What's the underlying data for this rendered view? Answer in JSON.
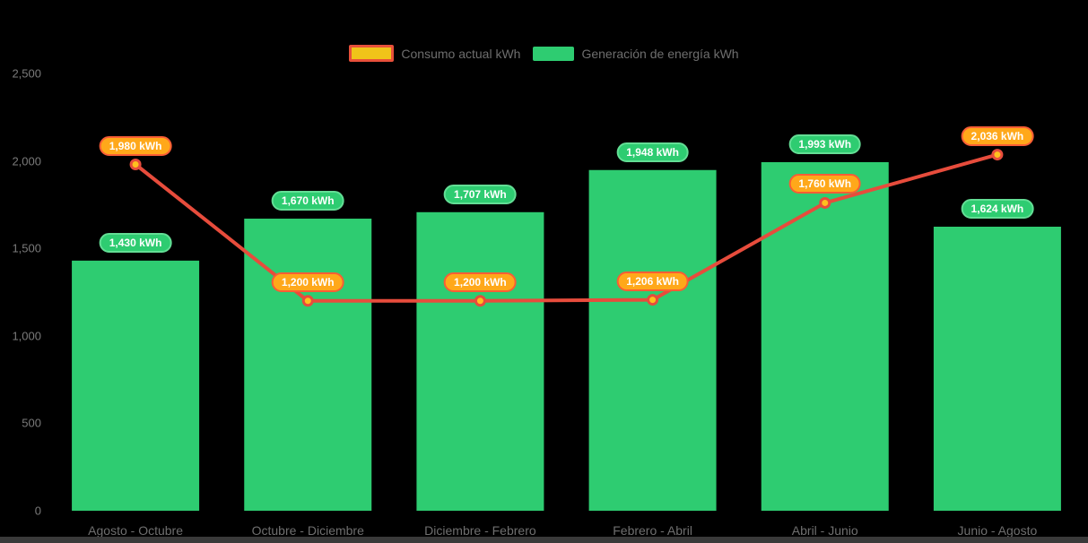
{
  "legend": {
    "items": [
      {
        "label": "Consumo actual kWh"
      },
      {
        "label": "Generación de energía kWh"
      }
    ]
  },
  "chart_data": {
    "type": "combo",
    "categories": [
      "Agosto - Octubre",
      "Octubre - Diciembre",
      "Diciembre - Febrero",
      "Febrero - Abril",
      "Abril - Junio",
      "Junio - Agosto"
    ],
    "series": [
      {
        "name": "Generación de energía kWh",
        "type": "bar",
        "values": [
          1430,
          1670,
          1707,
          1948,
          1993,
          1624
        ],
        "data_labels": [
          "1,430 kWh",
          "1,670 kWh",
          "1,707 kWh",
          "1,948 kWh",
          "1,993 kWh",
          "1,624 kWh"
        ]
      },
      {
        "name": "Consumo actual kWh",
        "type": "line",
        "values": [
          1980,
          1200,
          1200,
          1206,
          1760,
          2036
        ],
        "data_labels": [
          "1,980 kWh",
          "1,200 kWh",
          "1,200 kWh",
          "1,206 kWh",
          "1,760 kWh",
          "2,036 kWh"
        ]
      }
    ],
    "ylim": [
      0,
      2500
    ],
    "ytick_values": [
      0,
      500,
      1000,
      1500,
      2000,
      2500
    ],
    "ytick_labels": [
      "0",
      "500",
      "1,000",
      "1,500",
      "2,000",
      "2,500"
    ],
    "grid": false,
    "legend_position": "top"
  },
  "colors": {
    "background": "#000000",
    "bar_fill": "#2ecc71",
    "bar_pill_fill": "#2ecc71",
    "bar_pill_border": "#63de95",
    "line_stroke": "#e74c3c",
    "point_fill": "#ffc01e",
    "point_stroke": "#e74c3c",
    "line_pill_fill": "#ffa81a",
    "line_pill_border": "#f95d35",
    "legend_line_swatch_fill": "#f0c419",
    "legend_line_swatch_border": "#e8503a",
    "legend_bar_swatch_fill": "#2ecc71",
    "axis_text": "#7a7a7a",
    "bottom_bar": "#3a3a3a"
  }
}
